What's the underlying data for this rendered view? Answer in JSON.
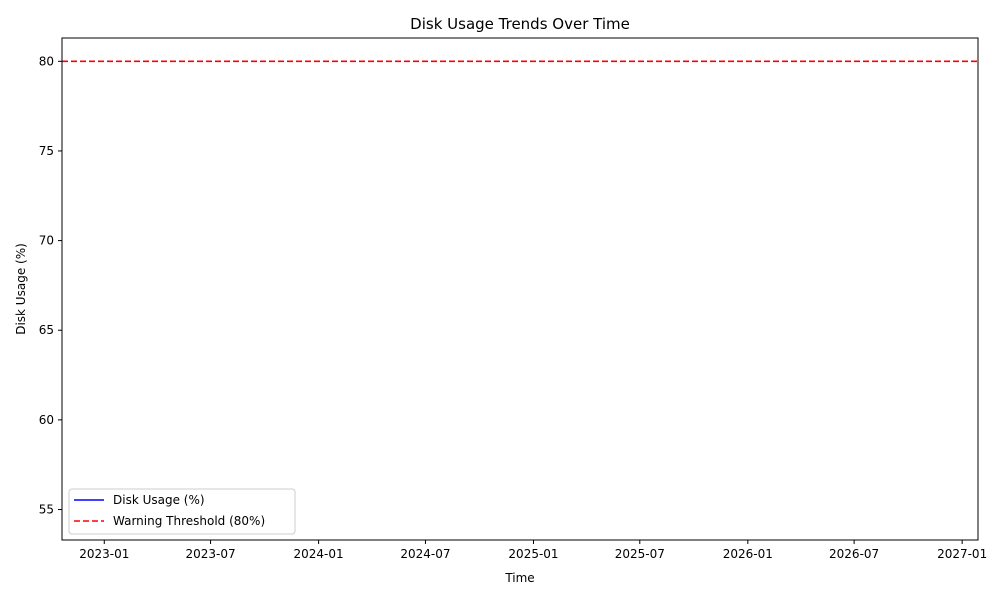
{
  "chart_data": {
    "type": "line",
    "title": "Disk Usage Trends Over Time",
    "xlabel": "Time",
    "ylabel": "Disk Usage (%)",
    "x_tick_labels": [
      "2023-01",
      "2023-07",
      "2024-01",
      "2024-07",
      "2025-01",
      "2025-07",
      "2026-01",
      "2026-07",
      "2027-01"
    ],
    "x_ticks": [
      "2023-01-01",
      "2023-07-01",
      "2024-01-01",
      "2024-07-01",
      "2025-01-01",
      "2025-07-01",
      "2026-01-01",
      "2026-07-01",
      "2027-01-01"
    ],
    "xlim": [
      "2022-10-21",
      "2027-01-28"
    ],
    "y_ticks": [
      55,
      60,
      65,
      70,
      75,
      80
    ],
    "ylim": [
      53.3,
      81.3
    ],
    "grid": false,
    "legend_position": "lower-left",
    "series": [
      {
        "name": "Disk Usage (%)",
        "color": "#0000ff",
        "linestyle": "solid",
        "points": []
      }
    ],
    "threshold": {
      "name": "Warning Threshold (80%)",
      "value": 80,
      "color": "#ff0000",
      "linestyle": "dashed"
    }
  }
}
